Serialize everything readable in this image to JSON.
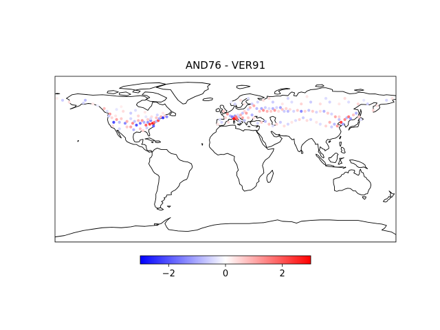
{
  "title": "AND76 - VER91",
  "colorbar": {
    "vmin": -3,
    "vmax": 3,
    "ticks": [
      -2,
      0,
      2
    ],
    "tick_labels": [
      "−2",
      "0",
      "2"
    ],
    "colormap": "bwr",
    "colors": {
      "low": "#0000ff",
      "mid": "#ffffff",
      "high": "#ff0000"
    }
  },
  "map": {
    "projection": "PlateCarree",
    "extent": {
      "lon": [
        -180,
        180
      ],
      "lat": [
        -90,
        90
      ]
    },
    "coastline_color": "#000000",
    "marker": "filled-circle"
  },
  "chart_data": {
    "type": "scatter",
    "title": "AND76 - VER91",
    "x_name": "longitude",
    "y_name": "latitude",
    "value_name": "difference",
    "points": [
      [
        -178,
        66,
        0.2
      ],
      [
        -172,
        64,
        -0.6
      ],
      [
        -165,
        62,
        0.4
      ],
      [
        -150,
        61,
        -0.5
      ],
      [
        -148,
        64,
        -0.8
      ],
      [
        -140,
        60,
        0.3
      ],
      [
        -135,
        58,
        -0.2
      ],
      [
        -128,
        55,
        0.8
      ],
      [
        -125,
        52,
        -0.4
      ],
      [
        -122,
        49,
        1.2
      ],
      [
        -123,
        47,
        -0.6
      ],
      [
        -120,
        45,
        0.5
      ],
      [
        -118,
        40,
        -2.1
      ],
      [
        -115,
        43,
        1.1
      ],
      [
        -112,
        40,
        -0.8
      ],
      [
        -110,
        44,
        0.6
      ],
      [
        -106,
        39,
        -1.4
      ],
      [
        -104,
        41,
        0.9
      ],
      [
        -100,
        44,
        -0.5
      ],
      [
        -98,
        39,
        1.4
      ],
      [
        -96,
        41,
        -0.7
      ],
      [
        -94,
        37,
        -2.0
      ],
      [
        -92,
        42,
        0.8
      ],
      [
        -90,
        39,
        -1.6
      ],
      [
        -88,
        42,
        1.2
      ],
      [
        -86,
        40,
        -0.9
      ],
      [
        -84,
        37,
        1.8
      ],
      [
        -82,
        40,
        -1.2
      ],
      [
        -80,
        38,
        2.3
      ],
      [
        -79,
        42,
        -1.5
      ],
      [
        -77,
        39,
        2.6
      ],
      [
        -76,
        36,
        -1.9
      ],
      [
        -75,
        40,
        1.7
      ],
      [
        -73,
        41,
        -0.8
      ],
      [
        -71,
        42,
        2.1
      ],
      [
        -70,
        44,
        -1.0
      ],
      [
        -68,
        46,
        0.9
      ],
      [
        -66,
        45,
        -2.4
      ],
      [
        -64,
        47,
        0.6
      ],
      [
        -62,
        46,
        -1.3
      ],
      [
        -66,
        50,
        0.3
      ],
      [
        -72,
        48,
        -0.5
      ],
      [
        -78,
        46,
        0.4
      ],
      [
        -84,
        46,
        -0.3
      ],
      [
        -92,
        47,
        0.5
      ],
      [
        -100,
        50,
        -0.6
      ],
      [
        -108,
        52,
        0.4
      ],
      [
        -115,
        54,
        -0.3
      ],
      [
        -110,
        57,
        0.2
      ],
      [
        -95,
        53,
        -0.4
      ],
      [
        -85,
        51,
        0.3
      ],
      [
        -104,
        35,
        0.6
      ],
      [
        -97,
        32,
        -0.9
      ],
      [
        -90,
        33,
        0.7
      ],
      [
        -112,
        33,
        -0.5
      ],
      [
        -119,
        36,
        0.4
      ],
      [
        -83,
        34,
        -0.6
      ],
      [
        -87,
        31,
        0.5
      ],
      [
        -100,
        35,
        1.1
      ],
      [
        -73,
        45,
        0.7
      ],
      [
        -79,
        44,
        -0.4
      ],
      [
        -82,
        43,
        0.6
      ],
      [
        -116,
        47,
        0.3
      ],
      [
        -2,
        52,
        0.6
      ],
      [
        2,
        49,
        1.2
      ],
      [
        5,
        47,
        -0.8
      ],
      [
        8,
        45,
        2.5
      ],
      [
        10,
        47,
        -1.2
      ],
      [
        12,
        44,
        1.8
      ],
      [
        14,
        46,
        -0.6
      ],
      [
        9,
        44,
        2.8
      ],
      [
        7,
        46,
        -1.5
      ],
      [
        11,
        46,
        1.6
      ],
      [
        13,
        48,
        -0.4
      ],
      [
        16,
        48,
        0.9
      ],
      [
        18,
        50,
        -0.7
      ],
      [
        20,
        52,
        0.5
      ],
      [
        22,
        50,
        1.1
      ],
      [
        24,
        54,
        -0.5
      ],
      [
        26,
        56,
        0.8
      ],
      [
        28,
        60,
        -0.6
      ],
      [
        30,
        58,
        1.0
      ],
      [
        33,
        55,
        -0.8
      ],
      [
        36,
        52,
        0.7
      ],
      [
        38,
        55,
        -1.0
      ],
      [
        40,
        53,
        1.3
      ],
      [
        42,
        56,
        -0.6
      ],
      [
        44,
        52,
        0.9
      ],
      [
        46,
        55,
        -0.4
      ],
      [
        48,
        52,
        0.6
      ],
      [
        50,
        55,
        -0.9
      ],
      [
        52,
        53,
        1.2
      ],
      [
        54,
        56,
        -0.5
      ],
      [
        56,
        52,
        0.4
      ],
      [
        58,
        56,
        -1.1
      ],
      [
        60,
        54,
        0.7
      ],
      [
        62,
        52,
        -0.6
      ],
      [
        64,
        55,
        0.5
      ],
      [
        66,
        52,
        -0.8
      ],
      [
        68,
        54,
        0.4
      ],
      [
        72,
        52,
        -0.5
      ],
      [
        76,
        53,
        0.6
      ],
      [
        80,
        52,
        -1.4
      ],
      [
        84,
        52,
        0.5
      ],
      [
        88,
        53,
        -0.7
      ],
      [
        92,
        52,
        0.6
      ],
      [
        96,
        51,
        -0.5
      ],
      [
        100,
        52,
        0.4
      ],
      [
        104,
        52,
        -0.9
      ],
      [
        108,
        50,
        0.6
      ],
      [
        112,
        49,
        -0.5
      ],
      [
        116,
        46,
        1.0
      ],
      [
        120,
        43,
        -0.7
      ],
      [
        122,
        40,
        2.2
      ],
      [
        124,
        38,
        -1.1
      ],
      [
        126,
        43,
        1.4
      ],
      [
        128,
        45,
        -0.8
      ],
      [
        130,
        46,
        1.6
      ],
      [
        132,
        44,
        -1.2
      ],
      [
        135,
        48,
        0.7
      ],
      [
        138,
        50,
        -0.9
      ],
      [
        141,
        46,
        0.6
      ],
      [
        143,
        43,
        -0.4
      ],
      [
        120,
        46,
        0.5
      ],
      [
        118,
        36,
        1.2
      ],
      [
        115,
        38,
        -0.8
      ],
      [
        110,
        40,
        0.9
      ],
      [
        112,
        35,
        -0.6
      ],
      [
        106,
        36,
        0.5
      ],
      [
        100,
        38,
        -0.4
      ],
      [
        96,
        40,
        0.3
      ],
      [
        90,
        43,
        -0.5
      ],
      [
        86,
        42,
        0.4
      ],
      [
        82,
        45,
        -0.6
      ],
      [
        78,
        43,
        0.5
      ],
      [
        74,
        42,
        -0.4
      ],
      [
        70,
        40,
        0.3
      ],
      [
        66,
        38,
        -0.5
      ],
      [
        62,
        36,
        0.4
      ],
      [
        58,
        40,
        -0.6
      ],
      [
        54,
        38,
        0.5
      ],
      [
        50,
        36,
        -0.4
      ],
      [
        46,
        38,
        0.7
      ],
      [
        42,
        41,
        -0.8
      ],
      [
        38,
        40,
        0.6
      ],
      [
        34,
        39,
        -0.5
      ],
      [
        30,
        45,
        0.4
      ],
      [
        28,
        48,
        -0.9
      ],
      [
        24,
        45,
        0.6
      ],
      [
        20,
        42,
        -0.7
      ],
      [
        18,
        45,
        1.1
      ],
      [
        15,
        41,
        -0.6
      ],
      [
        3,
        40,
        0.4
      ],
      [
        -4,
        40,
        -0.5
      ],
      [
        -8,
        38,
        0.3
      ],
      [
        -6,
        43,
        -0.4
      ],
      [
        0,
        45,
        0.5
      ],
      [
        34,
        62,
        -0.5
      ],
      [
        40,
        64,
        0.4
      ],
      [
        50,
        62,
        -0.6
      ],
      [
        60,
        60,
        0.3
      ],
      [
        70,
        62,
        -0.4
      ],
      [
        80,
        60,
        0.5
      ],
      [
        90,
        62,
        -0.6
      ],
      [
        100,
        60,
        0.4
      ],
      [
        110,
        62,
        -0.5
      ],
      [
        120,
        60,
        0.3
      ],
      [
        130,
        62,
        -0.4
      ],
      [
        140,
        60,
        0.5
      ],
      [
        150,
        60,
        -0.6
      ],
      [
        160,
        58,
        0.4
      ],
      [
        170,
        64,
        -0.5
      ],
      [
        176,
        66,
        0.3
      ],
      [
        24,
        66,
        -0.4
      ],
      [
        16,
        64,
        0.4
      ],
      [
        10,
        60,
        -0.5
      ],
      [
        20,
        60,
        0.3
      ],
      [
        6,
        62,
        -0.2
      ],
      [
        46,
        66,
        0.4
      ],
      [
        66,
        66,
        -0.5
      ],
      [
        86,
        68,
        0.3
      ],
      [
        106,
        66,
        -0.4
      ],
      [
        126,
        66,
        0.4
      ],
      [
        146,
        64,
        -0.3
      ],
      [
        156,
        53,
        0.5
      ]
    ]
  }
}
